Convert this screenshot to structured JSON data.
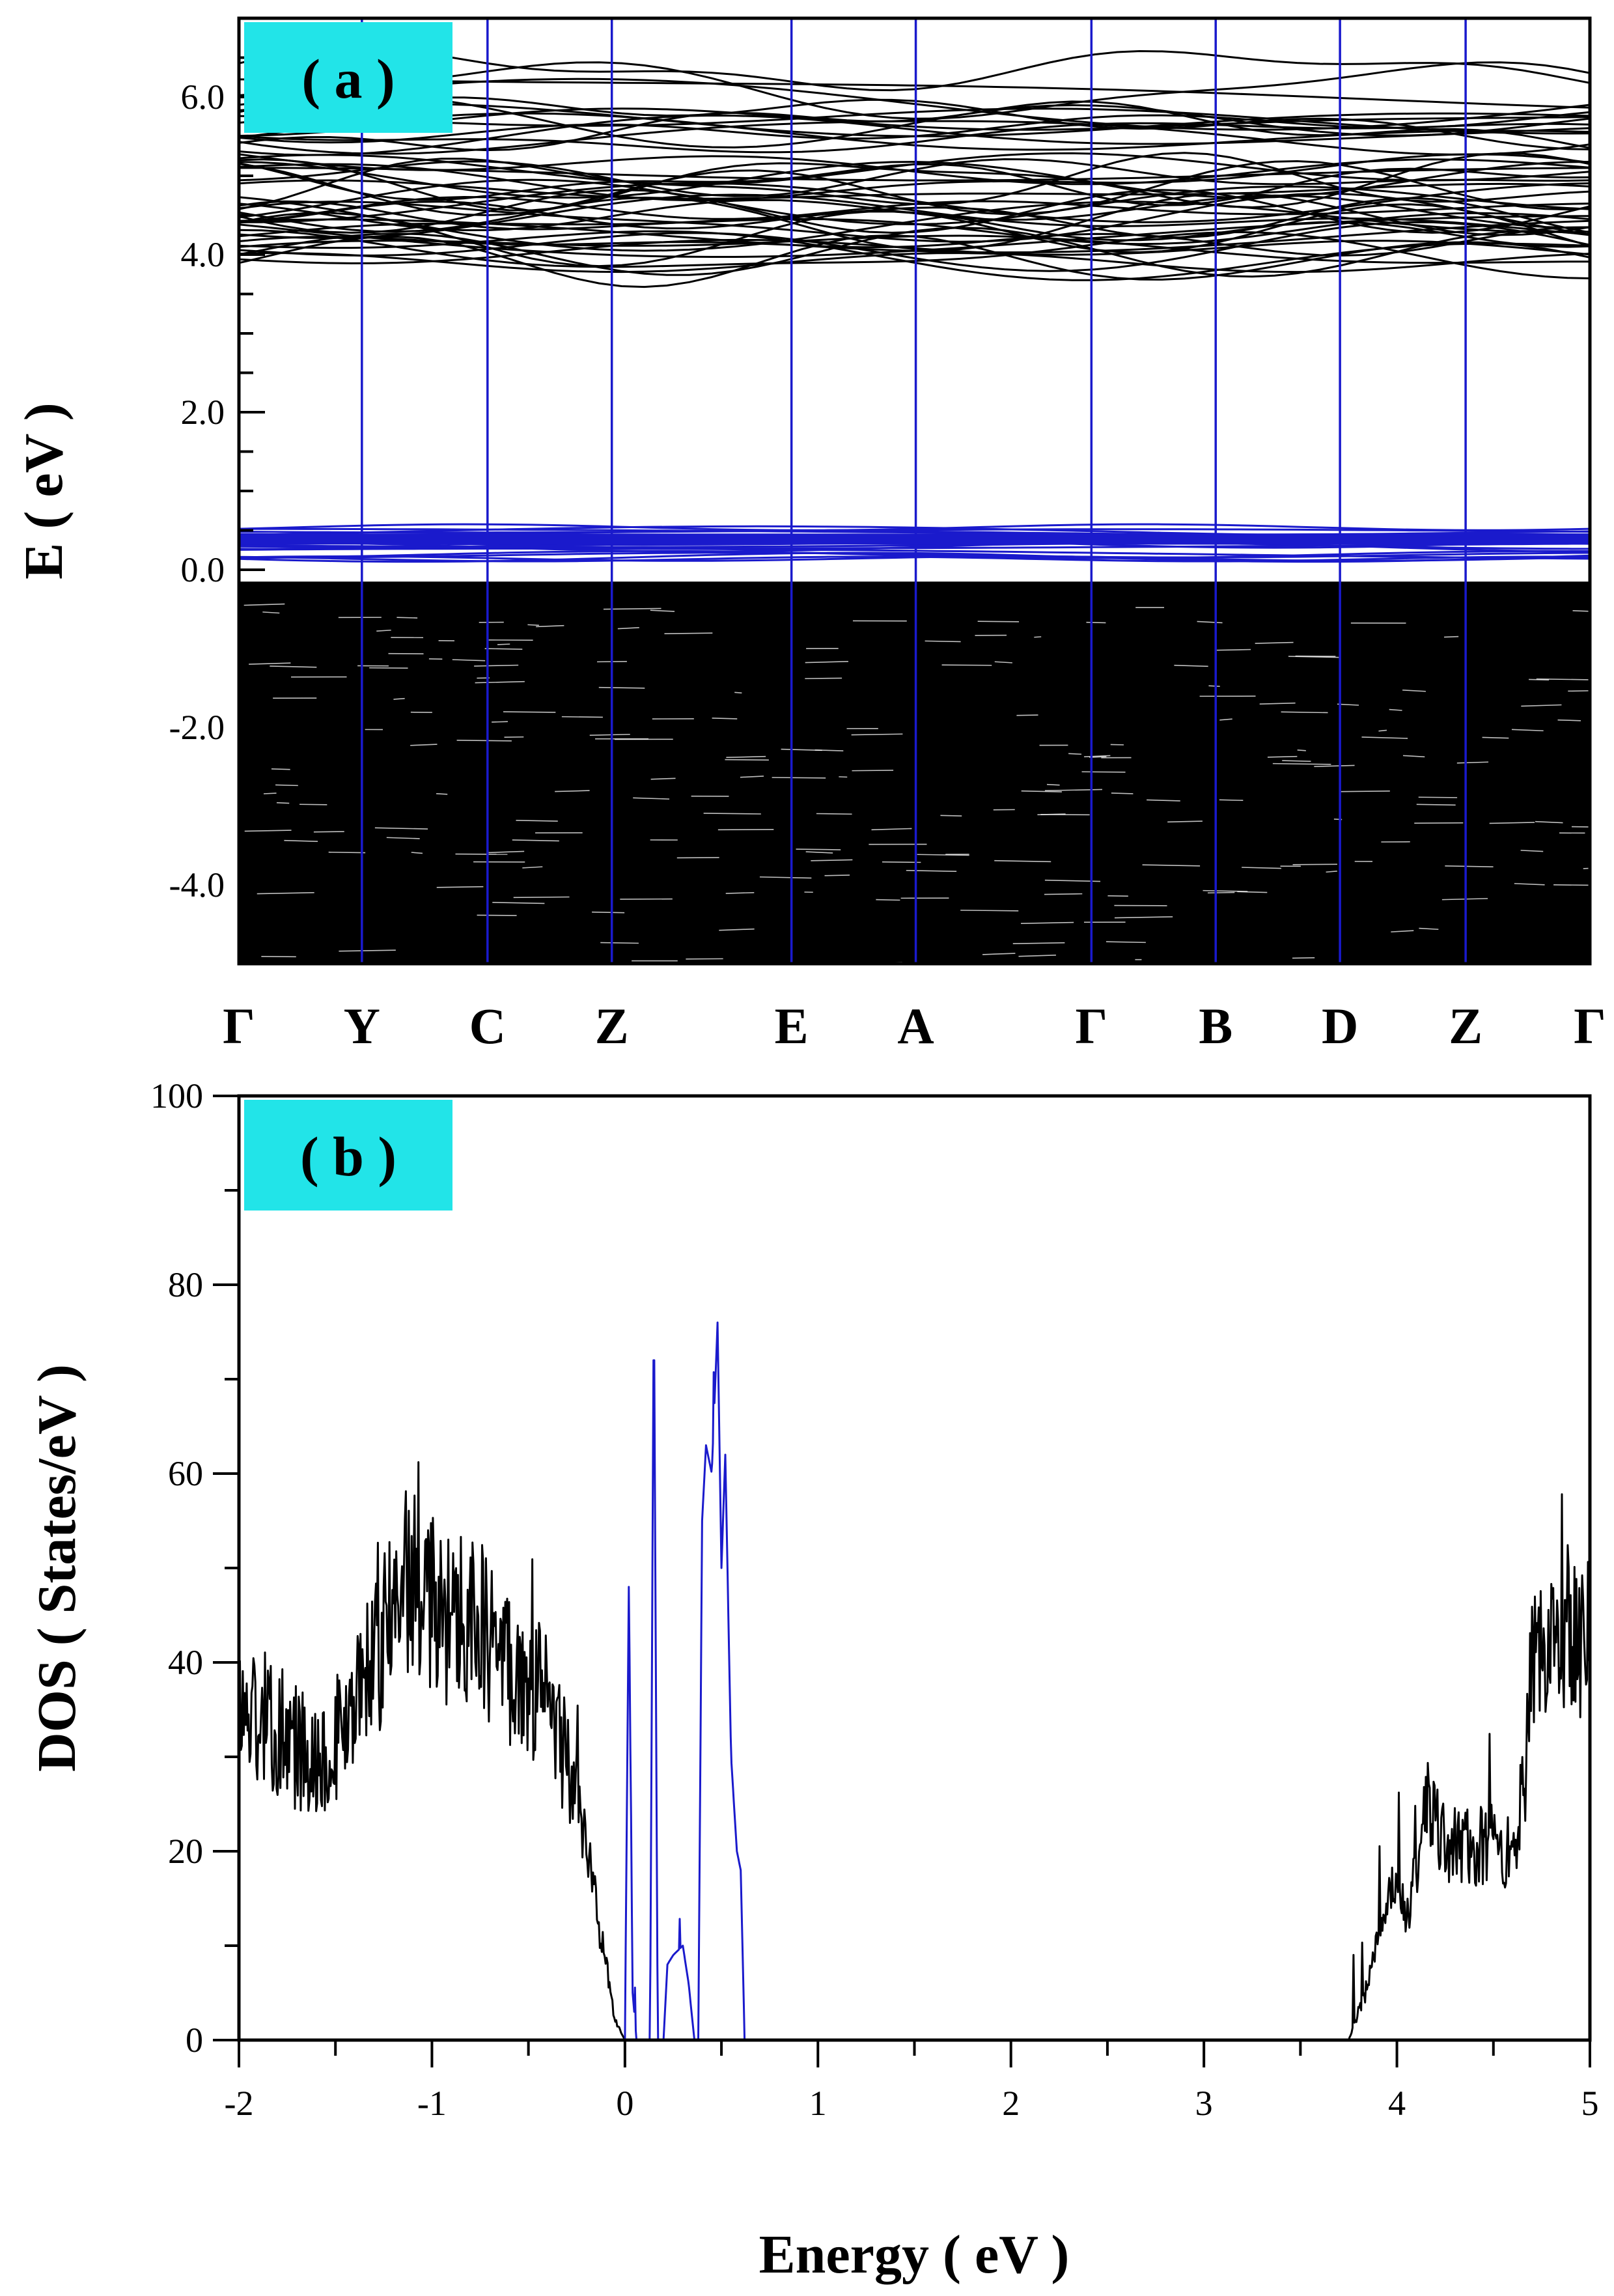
{
  "colors": {
    "valence": "#000000",
    "impurity": "#1a1acc",
    "vline": "#1a1acc",
    "label_bg": "#22e4e8"
  },
  "chart_data": [
    {
      "type": "line",
      "panel_label": "( a )",
      "ylabel": "E ( eV )",
      "ylim": [
        -5.0,
        7.0
      ],
      "y_ticks": [
        -4.0,
        -2.0,
        0.0,
        2.0,
        4.0,
        6.0
      ],
      "y_tick_labels": [
        "-4.0",
        "-2.0",
        "0.0",
        "2.0",
        "4.0",
        "6.0"
      ],
      "y_minor_step": 0.5,
      "k_labels": [
        "Γ",
        "Y",
        "C",
        "Z",
        "E",
        "A",
        "Γ",
        "B",
        "D",
        "Z",
        "Γ"
      ],
      "k_positions": [
        0,
        0.091,
        0.184,
        0.276,
        0.409,
        0.501,
        0.631,
        0.723,
        0.815,
        0.908,
        1.0
      ],
      "valence_band_top": -0.15,
      "impurity_band_range": [
        0.0,
        0.6
      ],
      "conduction_band_range": [
        3.75,
        6.7
      ],
      "grid": false
    },
    {
      "type": "line",
      "panel_label": "( b )",
      "xlabel": "Energy ( eV )",
      "ylabel": "DOS ( States/eV )",
      "xlim": [
        -2,
        5
      ],
      "ylim": [
        0,
        100
      ],
      "x_ticks": [
        -2,
        -1,
        0,
        1,
        2,
        3,
        4,
        5
      ],
      "x_tick_labels": [
        "-2",
        "-1",
        "0",
        "1",
        "2",
        "3",
        "4",
        "5"
      ],
      "y_ticks": [
        0,
        20,
        40,
        60,
        80,
        100
      ],
      "y_tick_labels": [
        "0",
        "20",
        "40",
        "60",
        "80",
        "100"
      ],
      "grid": false,
      "series": [
        {
          "color": "#000000",
          "x": [
            -2.0,
            -1.9,
            -1.8,
            -1.7,
            -1.6,
            -1.5,
            -1.4,
            -1.3,
            -1.2,
            -1.15,
            -1.1,
            -1.0,
            -0.9,
            -0.85,
            -0.8,
            -0.7,
            -0.6,
            -0.5,
            -0.4,
            -0.3,
            -0.25,
            -0.2,
            -0.15,
            -0.1,
            -0.05,
            0.0
          ],
          "y": [
            35,
            34,
            33,
            31,
            30,
            32,
            35,
            40,
            45,
            50,
            48,
            46,
            44,
            47,
            45,
            42,
            40,
            38,
            35,
            30,
            25,
            20,
            15,
            8,
            2,
            0
          ]
        },
        {
          "color": "#1a1acc",
          "x": [
            0.0,
            0.02,
            0.04,
            0.06,
            0.08,
            0.1,
            0.13,
            0.15,
            0.17,
            0.2,
            0.22,
            0.25,
            0.3,
            0.33,
            0.36,
            0.38,
            0.4,
            0.42,
            0.45,
            0.48,
            0.5,
            0.52,
            0.55,
            0.58,
            0.6,
            0.62
          ],
          "y": [
            0,
            48,
            5,
            0,
            0,
            0,
            0,
            80,
            0,
            0,
            8,
            9,
            10,
            6,
            0,
            0,
            55,
            63,
            60,
            76,
            50,
            62,
            30,
            20,
            18,
            0
          ]
        },
        {
          "color": "#000000",
          "x": [
            3.75,
            3.8,
            3.85,
            3.9,
            3.95,
            4.0,
            4.05,
            4.1,
            4.15,
            4.2,
            4.3,
            4.4,
            4.5,
            4.55,
            4.6,
            4.65,
            4.7,
            4.8,
            4.9,
            5.0
          ],
          "y": [
            0,
            3,
            6,
            10,
            14,
            16,
            13,
            18,
            25,
            22,
            21,
            20,
            21,
            18,
            22,
            25,
            38,
            42,
            45,
            42
          ]
        }
      ]
    }
  ]
}
